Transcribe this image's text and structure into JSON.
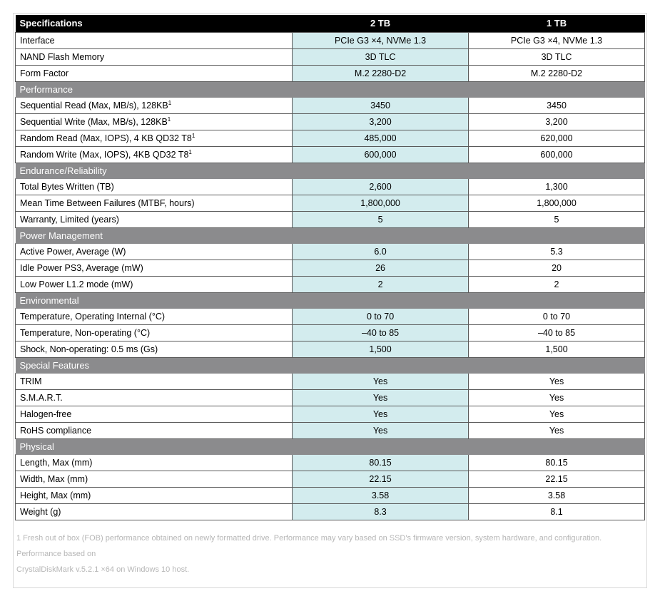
{
  "table": {
    "headers": [
      "Specifications",
      "2 TB",
      "1 TB"
    ],
    "highlight_col": 1,
    "highlight_bg": "#d3ecee",
    "header_bg": "#000000",
    "header_color": "#ffffff",
    "section_bg": "#8b8b8d",
    "section_color": "#ffffff",
    "border_color": "#5a5a5a",
    "font_size_pt": 12.5,
    "blocks": [
      {
        "type": "data",
        "rows": [
          {
            "label": "Interface",
            "values": [
              "PCIe G3 ×4, NVMe 1.3",
              "PCIe G3 ×4, NVMe 1.3"
            ]
          },
          {
            "label": "NAND Flash Memory",
            "values": [
              "3D TLC",
              "3D TLC"
            ]
          },
          {
            "label": "Form Factor",
            "values": [
              "M.2 2280-D2",
              "M.2 2280-D2"
            ]
          }
        ]
      },
      {
        "type": "section",
        "title": "Performance",
        "rows": [
          {
            "label": "Sequential Read (Max, MB/s), 128KB",
            "sup": "1",
            "values": [
              "3450",
              "3450"
            ]
          },
          {
            "label": "Sequential Write (Max, MB/s), 128KB",
            "sup": "1",
            "values": [
              "3,200",
              "3,200"
            ]
          },
          {
            "label": "Random Read (Max, IOPS), 4 KB QD32 T8",
            "sup": "1",
            "values": [
              "485,000",
              "620,000"
            ]
          },
          {
            "label": "Random Write (Max, IOPS), 4KB QD32 T8",
            "sup": "1",
            "values": [
              "600,000",
              "600,000"
            ]
          }
        ]
      },
      {
        "type": "section",
        "title": "Endurance/Reliability",
        "rows": [
          {
            "label": "Total Bytes Written (TB)",
            "values": [
              "2,600",
              "1,300"
            ]
          },
          {
            "label": "Mean Time Between Failures (MTBF, hours)",
            "values": [
              "1,800,000",
              "1,800,000"
            ]
          },
          {
            "label": "Warranty, Limited (years)",
            "values": [
              "5",
              "5"
            ]
          }
        ]
      },
      {
        "type": "section",
        "title": "Power Management",
        "rows": [
          {
            "label": "Active Power, Average (W)",
            "values": [
              "6.0",
              "5.3"
            ]
          },
          {
            "label": "Idle Power PS3, Average (mW)",
            "values": [
              "26",
              "20"
            ]
          },
          {
            "label": "Low Power L1.2 mode (mW)",
            "values": [
              "2",
              "2"
            ]
          }
        ]
      },
      {
        "type": "section",
        "title": "Environmental",
        "rows": [
          {
            "label": "Temperature, Operating Internal (°C)",
            "values": [
              "0 to 70",
              "0 to 70"
            ]
          },
          {
            "label": "Temperature, Non-operating (°C)",
            "values": [
              "–40 to 85",
              "–40 to 85"
            ]
          },
          {
            "label": "Shock, Non-operating: 0.5 ms (Gs)",
            "values": [
              "1,500",
              "1,500"
            ]
          }
        ]
      },
      {
        "type": "section",
        "title": "Special Features",
        "rows": [
          {
            "label": "TRIM",
            "values": [
              "Yes",
              "Yes"
            ]
          },
          {
            "label": "S.M.A.R.T.",
            "values": [
              "Yes",
              "Yes"
            ]
          },
          {
            "label": "Halogen-free",
            "values": [
              "Yes",
              "Yes"
            ]
          },
          {
            "label": "RoHS compliance",
            "values": [
              "Yes",
              "Yes"
            ]
          }
        ]
      },
      {
        "type": "section",
        "title": "Physical",
        "rows": [
          {
            "label": "Length, Max (mm)",
            "values": [
              "80.15",
              "80.15"
            ]
          },
          {
            "label": "Width, Max (mm)",
            "values": [
              "22.15",
              "22.15"
            ]
          },
          {
            "label": "Height, Max (mm)",
            "values": [
              "3.58",
              "3.58"
            ]
          },
          {
            "label": "Weight (g)",
            "values": [
              "8.3",
              "8.1"
            ]
          }
        ]
      }
    ]
  },
  "footnotes": [
    "1 Fresh out of box (FOB) performance obtained on newly formatted drive. Performance may vary based on SSD's firmware version, system hardware, and configuration. Performance based on",
    "CrystalDiskMark v.5.2.1 ×64 on Windows 10 host."
  ]
}
